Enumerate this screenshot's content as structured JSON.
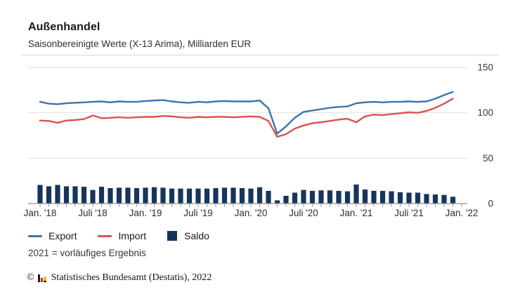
{
  "header": {
    "title": "Außenhandel",
    "subtitle": "Saisonbereinigte Werte (X-13 Arima), Milliarden EUR"
  },
  "legend": {
    "items": [
      {
        "label": "Export",
        "swatch": "line",
        "color": "#3b74ac"
      },
      {
        "label": "Import",
        "swatch": "line",
        "color": "#dd5050"
      },
      {
        "label": "Saldo",
        "swatch": "square",
        "color": "#16355b"
      }
    ]
  },
  "footnote": "2021 = vorläufiges Ergebnis",
  "copyright": {
    "symbol": "©",
    "text": "Statistisches Bundesamt (Destatis), 2022"
  },
  "chart_data": {
    "type": "line+bar",
    "title": "Außenhandel",
    "unit": "Milliarden EUR",
    "ylim": [
      0,
      150
    ],
    "yticks": [
      0,
      50,
      100,
      150
    ],
    "grid": "horizontal",
    "legend_position": "bottom-left",
    "x": [
      "2018-01",
      "2018-02",
      "2018-03",
      "2018-04",
      "2018-05",
      "2018-06",
      "2018-07",
      "2018-08",
      "2018-09",
      "2018-10",
      "2018-11",
      "2018-12",
      "2019-01",
      "2019-02",
      "2019-03",
      "2019-04",
      "2019-05",
      "2019-06",
      "2019-07",
      "2019-08",
      "2019-09",
      "2019-10",
      "2019-11",
      "2019-12",
      "2020-01",
      "2020-02",
      "2020-03",
      "2020-04",
      "2020-05",
      "2020-06",
      "2020-07",
      "2020-08",
      "2020-09",
      "2020-10",
      "2020-11",
      "2020-12",
      "2021-01",
      "2021-02",
      "2021-03",
      "2021-04",
      "2021-05",
      "2021-06",
      "2021-07",
      "2021-08",
      "2021-09",
      "2021-10",
      "2021-11",
      "2021-12"
    ],
    "xticks": [
      {
        "month": 0,
        "label": "Jan. '18"
      },
      {
        "month": 6,
        "label": "Juli '18"
      },
      {
        "month": 12,
        "label": "Jan. '19"
      },
      {
        "month": 18,
        "label": "Juli '19"
      },
      {
        "month": 24,
        "label": "Jan. '20"
      },
      {
        "month": 30,
        "label": "Juli '20"
      },
      {
        "month": 36,
        "label": "Jan. '21"
      },
      {
        "month": 42,
        "label": "Juli '21"
      },
      {
        "month": 48,
        "label": "Jan. '22"
      }
    ],
    "series": [
      {
        "name": "Export",
        "type": "line",
        "color": "#3b74ac",
        "values": [
          112.0,
          110.0,
          109.5,
          110.5,
          111.0,
          111.5,
          112.0,
          112.5,
          111.5,
          112.5,
          112.0,
          112.0,
          113.0,
          113.5,
          114.0,
          112.5,
          111.5,
          111.0,
          112.0,
          111.5,
          112.5,
          113.0,
          112.5,
          112.5,
          112.5,
          113.5,
          105.0,
          77.0,
          85.0,
          94.5,
          101.0,
          102.5,
          104.0,
          105.5,
          106.5,
          107.0,
          110.5,
          111.5,
          112.0,
          111.5,
          112.0,
          112.0,
          112.5,
          112.0,
          112.5,
          115.5,
          119.5,
          123.0
        ]
      },
      {
        "name": "Import",
        "type": "line",
        "color": "#dd5050",
        "values": [
          91.5,
          91.0,
          89.0,
          91.5,
          92.0,
          93.0,
          97.0,
          94.0,
          94.5,
          95.0,
          94.5,
          95.0,
          95.5,
          95.5,
          96.5,
          96.0,
          95.0,
          94.5,
          95.5,
          95.0,
          95.5,
          95.5,
          95.0,
          95.5,
          96.0,
          95.5,
          91.0,
          73.5,
          76.5,
          82.5,
          86.0,
          88.5,
          89.5,
          91.0,
          92.5,
          93.5,
          89.5,
          96.0,
          98.0,
          97.5,
          98.5,
          99.5,
          100.5,
          100.0,
          102.0,
          105.5,
          110.0,
          115.5
        ]
      },
      {
        "name": "Saldo",
        "type": "bar",
        "color": "#16355b",
        "values": [
          20.5,
          19.0,
          20.5,
          19.0,
          19.0,
          18.5,
          15.0,
          18.5,
          17.0,
          17.5,
          17.5,
          17.0,
          17.5,
          18.0,
          17.5,
          16.5,
          16.5,
          16.5,
          16.5,
          16.5,
          17.0,
          17.5,
          17.5,
          17.0,
          16.5,
          18.0,
          14.0,
          3.5,
          8.5,
          12.0,
          15.0,
          14.0,
          14.5,
          14.5,
          14.0,
          13.5,
          21.0,
          15.5,
          14.0,
          14.0,
          13.5,
          12.5,
          12.0,
          12.0,
          10.5,
          10.0,
          9.5,
          7.5
        ]
      }
    ]
  }
}
